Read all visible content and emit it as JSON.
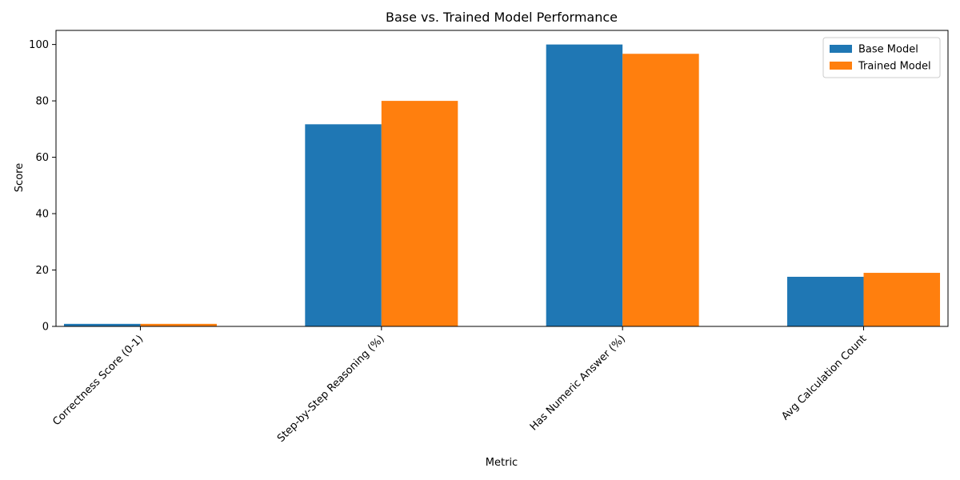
{
  "chart_data": {
    "type": "bar",
    "title": "Base vs. Trained Model Performance",
    "xlabel": "Metric",
    "ylabel": "Score",
    "categories": [
      "Correctness Score (0-1)",
      "Step-by-Step Reasoning (%)",
      "Has Numeric Answer (%)",
      "Avg Calculation Count"
    ],
    "series": [
      {
        "name": "Base Model",
        "color": "#1f77b4",
        "values": [
          0.9,
          71.7,
          100.0,
          17.6
        ]
      },
      {
        "name": "Trained Model",
        "color": "#ff7f0e",
        "values": [
          0.9,
          80.0,
          96.7,
          19.0
        ]
      }
    ],
    "ylim": [
      0,
      105
    ],
    "yticks": [
      0,
      20,
      40,
      60,
      80,
      100
    ],
    "grid": false,
    "legend_position": "top-right"
  }
}
